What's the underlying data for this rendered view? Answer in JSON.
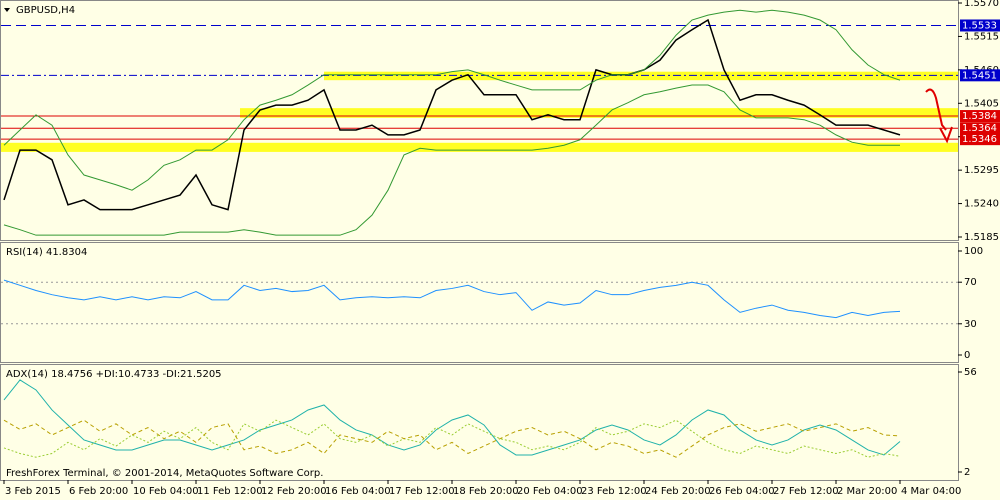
{
  "chart_data": [
    {
      "type": "line",
      "title": "GBPUSD,H4",
      "ylim": [
        1.5185,
        1.557
      ],
      "yticks": [
        {
          "value": 1.557,
          "label": "1.5570"
        },
        1.5515,
        {
          "value": 1.546,
          "label": "1.5460"
        },
        1.5405,
        {
          "value": 1.535,
          "label": "1.5350"
        },
        1.5295,
        {
          "value": 1.524,
          "label": "1.5240"
        },
        1.5185
      ],
      "series": [
        {
          "color": "#000000",
          "values": [
            1.5246,
            1.5328,
            1.5328,
            1.5312,
            1.5238,
            1.5246,
            1.523,
            1.523,
            1.523,
            1.5238,
            1.5246,
            1.5254,
            1.5287,
            1.5238,
            1.523,
            1.5361,
            1.5394,
            1.5402,
            1.5402,
            1.541,
            1.5427,
            1.5361,
            1.5361,
            1.5369,
            1.5353,
            1.5353,
            1.5361,
            1.5427,
            1.5443,
            1.5452,
            1.5419,
            1.5419,
            1.5419,
            1.5378,
            1.5386,
            1.5378,
            1.5378,
            1.546,
            1.5452,
            1.5452,
            1.546,
            1.5476,
            1.5509,
            1.5526,
            1.5542,
            1.546,
            1.541,
            1.5419,
            1.5419,
            1.541,
            1.5402,
            1.5386,
            1.5369,
            1.5369,
            1.5369,
            1.5361,
            1.5353
          ]
        },
        {
          "color": "#339933",
          "values": [
            1.5336,
            1.5361,
            1.5386,
            1.5369,
            1.532,
            1.5287,
            1.5279,
            1.5271,
            1.5262,
            1.5279,
            1.5303,
            1.5312,
            1.5328,
            1.5328,
            1.5345,
            1.5378,
            1.5402,
            1.541,
            1.5419,
            1.5435,
            1.5452,
            1.5452,
            1.5452,
            1.5452,
            1.5452,
            1.5452,
            1.5452,
            1.5452,
            1.5457,
            1.546,
            1.5452,
            1.5443,
            1.5435,
            1.5427,
            1.5427,
            1.5427,
            1.5427,
            1.5443,
            1.5452,
            1.5452,
            1.546,
            1.5484,
            1.5517,
            1.5542,
            1.555,
            1.5555,
            1.5558,
            1.5555,
            1.5558,
            1.5555,
            1.555,
            1.5542,
            1.5526,
            1.5493,
            1.5468,
            1.5452,
            1.5443
          ]
        },
        {
          "color": "#339933",
          "values": [
            1.5205,
            1.5197,
            1.5188,
            1.5188,
            1.5188,
            1.5188,
            1.5188,
            1.5188,
            1.5188,
            1.5188,
            1.5188,
            1.5193,
            1.5193,
            1.5193,
            1.5193,
            1.5197,
            1.5193,
            1.5188,
            1.5188,
            1.5188,
            1.5188,
            1.5188,
            1.5197,
            1.5221,
            1.5262,
            1.532,
            1.5331,
            1.5328,
            1.5328,
            1.5328,
            1.5328,
            1.5328,
            1.5328,
            1.5328,
            1.5331,
            1.5336,
            1.5345,
            1.5369,
            1.5394,
            1.5406,
            1.5419,
            1.5424,
            1.543,
            1.5435,
            1.5435,
            1.5424,
            1.5394,
            1.5381,
            1.5381,
            1.5381,
            1.5378,
            1.5369,
            1.5353,
            1.5341,
            1.5336,
            1.5336,
            1.5336
          ]
        }
      ],
      "zones": [
        [
          1.5443,
          1.5457
        ],
        [
          1.5381,
          1.5397
        ],
        [
          1.5325,
          1.534
        ]
      ],
      "levels": [
        {
          "value": 1.5533,
          "color": "#0000cc",
          "dash": "10 5"
        },
        {
          "value": 1.5451,
          "color": "#0000cc",
          "dash": "8 3 2 3"
        },
        {
          "value": 1.5384,
          "color": "#dd0000",
          "dash": "none"
        },
        {
          "value": 1.5364,
          "color": "#dd0000",
          "dash": "none"
        },
        {
          "value": 1.5346,
          "color": "#dd0000",
          "dash": "none"
        }
      ]
    },
    {
      "type": "line",
      "title": "RSI(14) 41.8304",
      "ylim": [
        0,
        100
      ],
      "yticks": [
        0,
        30,
        70,
        100
      ],
      "grid": true,
      "series": [
        {
          "color": "#1e90ff",
          "values": [
            72,
            67,
            62,
            58,
            55,
            53,
            56,
            53,
            56,
            53,
            56,
            55,
            61,
            53,
            53,
            67,
            62,
            64,
            61,
            62,
            67,
            53,
            55,
            56,
            55,
            56,
            55,
            62,
            64,
            67,
            61,
            58,
            60,
            43,
            51,
            48,
            50,
            62,
            58,
            58,
            62,
            65,
            67,
            70,
            67,
            53,
            41,
            45,
            48,
            43,
            41,
            38,
            36,
            41,
            38,
            41,
            42
          ]
        }
      ]
    },
    {
      "type": "line",
      "title": "ADX(14) 18.4756 +DI:10.4733 -DI:21.5205",
      "footer": "FreshForex Terminal, © 2001-2014, MetaQuotes Software Corp.",
      "ylim": [
        2,
        56
      ],
      "yticks": [
        2,
        56
      ],
      "categories": [
        "3 Feb 2015",
        null,
        null,
        null,
        "6 Feb 20:00",
        null,
        null,
        null,
        "10 Feb 04:00",
        null,
        null,
        null,
        "11 Feb 12:00",
        null,
        null,
        null,
        "12 Feb 20:00",
        null,
        null,
        null,
        "16 Feb 04:00",
        null,
        null,
        null,
        "17 Feb 12:00",
        null,
        null,
        null,
        "18 Feb 20:00",
        null,
        null,
        null,
        "20 Feb 04:00",
        null,
        null,
        null,
        "23 Feb 12:00",
        null,
        null,
        null,
        "24 Feb 20:00",
        null,
        null,
        null,
        "26 Feb 04:00",
        null,
        null,
        null,
        "27 Feb 12:00",
        null,
        null,
        null,
        "2 Mar 20:00",
        null,
        null,
        null,
        "4 Mar 04:00"
      ],
      "series": [
        {
          "color": "#20b2aa",
          "dash": "none",
          "values": [
            40.9,
            51.7,
            46.3,
            35.5,
            27.4,
            19.3,
            16.6,
            13.9,
            13.9,
            16.6,
            19.3,
            19.3,
            16.6,
            13.9,
            16.6,
            19.3,
            24.7,
            27.4,
            30.1,
            35.5,
            38.2,
            30.1,
            24.7,
            22.0,
            16.6,
            13.9,
            16.6,
            24.7,
            30.1,
            32.8,
            27.4,
            16.6,
            11.2,
            11.2,
            13.9,
            16.6,
            19.3,
            24.7,
            27.4,
            24.7,
            19.3,
            16.6,
            22.0,
            30.1,
            35.5,
            32.8,
            24.7,
            19.3,
            16.6,
            19.3,
            24.7,
            27.4,
            24.7,
            19.3,
            13.9,
            11.2,
            18.5
          ]
        },
        {
          "color": "#9acd32",
          "dash": "2 2",
          "values": [
            15,
            12,
            10,
            12,
            18,
            14,
            20,
            16,
            22,
            18,
            24,
            20,
            26,
            18,
            14,
            28,
            24,
            30,
            26,
            22,
            28,
            20,
            18,
            22,
            16,
            20,
            18,
            26,
            22,
            28,
            24,
            20,
            18,
            14,
            16,
            14,
            18,
            26,
            22,
            24,
            28,
            26,
            30,
            24,
            18,
            14,
            12,
            16,
            14,
            12,
            16,
            14,
            12,
            14,
            10,
            12,
            10.5
          ]
        },
        {
          "color": "#b8a000",
          "dash": "4 3",
          "values": [
            30,
            25,
            28,
            22,
            26,
            30,
            24,
            28,
            22,
            26,
            20,
            24,
            18,
            26,
            28,
            14,
            16,
            12,
            14,
            18,
            12,
            22,
            20,
            18,
            24,
            20,
            22,
            14,
            18,
            12,
            16,
            20,
            24,
            26,
            22,
            24,
            20,
            14,
            18,
            16,
            12,
            14,
            10,
            16,
            22,
            26,
            28,
            24,
            26,
            28,
            24,
            26,
            28,
            24,
            26,
            22,
            21.5
          ]
        }
      ]
    }
  ]
}
